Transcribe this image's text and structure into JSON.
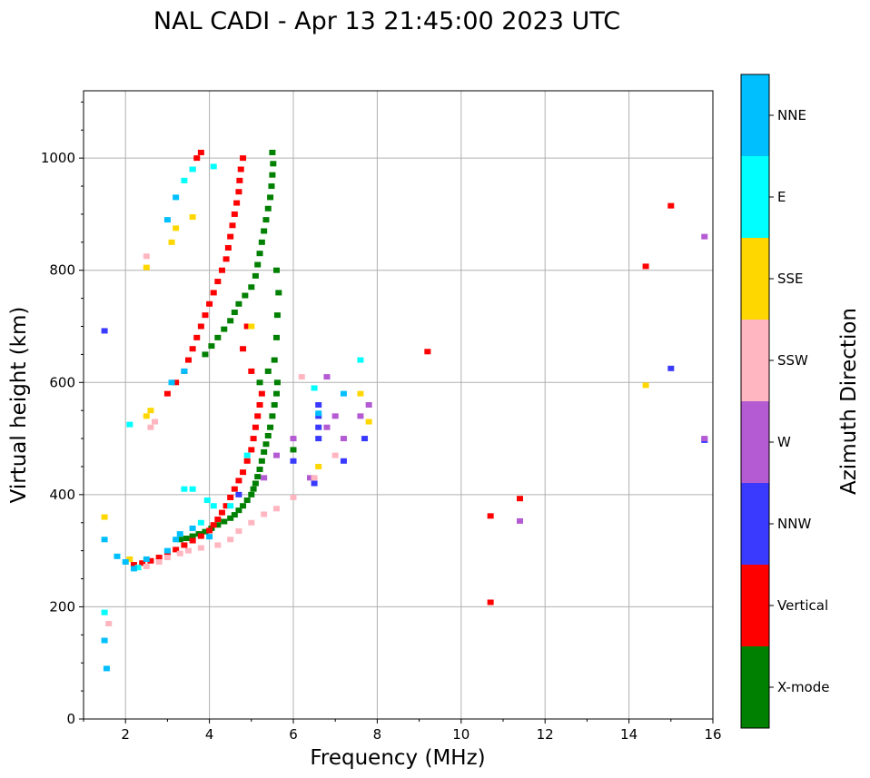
{
  "chart_data": {
    "type": "scatter",
    "title": "NAL CADI - Apr 13 21:45:00 2023 UTC",
    "xlabel": "Frequency (MHz)",
    "ylabel": "Virtual height (km)",
    "xlim": [
      1,
      16
    ],
    "ylim": [
      0,
      1120
    ],
    "xticks": [
      "2",
      "4",
      "6",
      "8",
      "10",
      "12",
      "14",
      "16"
    ],
    "yticks": [
      "0",
      "200",
      "400",
      "600",
      "800",
      "1000"
    ],
    "grid": true,
    "colorbar": {
      "label": "Azimuth Direction",
      "categories": [
        {
          "name": "X-mode",
          "color": "#008000"
        },
        {
          "name": "Vertical",
          "color": "#ff0000"
        },
        {
          "name": "NNW",
          "color": "#3a3aff"
        },
        {
          "name": "W",
          "color": "#b45ad2"
        },
        {
          "name": "SSW",
          "color": "#ffb6c1"
        },
        {
          "name": "SSE",
          "color": "#ffd700"
        },
        {
          "name": "E",
          "color": "#00ffff"
        },
        {
          "name": "NNE",
          "color": "#00bfff"
        }
      ]
    },
    "series": [
      {
        "name": "X-mode",
        "points": [
          [
            3.3,
            320
          ],
          [
            3.45,
            322
          ],
          [
            3.6,
            326
          ],
          [
            3.75,
            330
          ],
          [
            3.9,
            334
          ],
          [
            4.05,
            340
          ],
          [
            4.2,
            346
          ],
          [
            4.35,
            352
          ],
          [
            4.5,
            358
          ],
          [
            4.6,
            364
          ],
          [
            4.7,
            372
          ],
          [
            4.8,
            380
          ],
          [
            4.9,
            390
          ],
          [
            5.0,
            400
          ],
          [
            5.05,
            410
          ],
          [
            5.1,
            420
          ],
          [
            5.15,
            432
          ],
          [
            5.2,
            445
          ],
          [
            5.25,
            460
          ],
          [
            5.3,
            476
          ],
          [
            5.35,
            490
          ],
          [
            5.4,
            505
          ],
          [
            5.45,
            520
          ],
          [
            5.5,
            540
          ],
          [
            5.55,
            560
          ],
          [
            5.6,
            580
          ],
          [
            5.62,
            600
          ],
          [
            3.9,
            650
          ],
          [
            4.05,
            665
          ],
          [
            4.2,
            680
          ],
          [
            4.35,
            695
          ],
          [
            4.5,
            710
          ],
          [
            4.6,
            725
          ],
          [
            4.7,
            740
          ],
          [
            4.85,
            755
          ],
          [
            5.0,
            770
          ],
          [
            5.1,
            790
          ],
          [
            5.15,
            810
          ],
          [
            5.2,
            830
          ],
          [
            5.25,
            850
          ],
          [
            5.3,
            870
          ],
          [
            5.35,
            890
          ],
          [
            5.4,
            910
          ],
          [
            5.45,
            930
          ],
          [
            5.48,
            950
          ],
          [
            5.5,
            970
          ],
          [
            5.52,
            990
          ],
          [
            5.5,
            1010
          ],
          [
            5.55,
            640
          ],
          [
            5.6,
            680
          ],
          [
            5.62,
            720
          ],
          [
            5.65,
            760
          ],
          [
            5.6,
            800
          ],
          [
            5.2,
            600
          ],
          [
            5.4,
            620
          ],
          [
            6.0,
            480
          ]
        ]
      },
      {
        "name": "Vertical",
        "points": [
          [
            2.2,
            275
          ],
          [
            2.4,
            278
          ],
          [
            2.6,
            282
          ],
          [
            2.8,
            288
          ],
          [
            3.0,
            295
          ],
          [
            3.2,
            302
          ],
          [
            3.4,
            310
          ],
          [
            3.6,
            318
          ],
          [
            3.8,
            326
          ],
          [
            4.0,
            336
          ],
          [
            4.1,
            346
          ],
          [
            4.2,
            356
          ],
          [
            4.3,
            368
          ],
          [
            4.4,
            380
          ],
          [
            4.5,
            395
          ],
          [
            4.6,
            410
          ],
          [
            4.7,
            425
          ],
          [
            4.8,
            440
          ],
          [
            4.9,
            460
          ],
          [
            5.0,
            480
          ],
          [
            5.05,
            500
          ],
          [
            5.1,
            520
          ],
          [
            5.15,
            540
          ],
          [
            5.2,
            560
          ],
          [
            5.25,
            580
          ],
          [
            3.0,
            580
          ],
          [
            3.2,
            600
          ],
          [
            3.4,
            620
          ],
          [
            3.5,
            640
          ],
          [
            3.6,
            660
          ],
          [
            3.7,
            680
          ],
          [
            3.8,
            700
          ],
          [
            3.9,
            720
          ],
          [
            4.0,
            740
          ],
          [
            4.1,
            760
          ],
          [
            4.2,
            780
          ],
          [
            4.3,
            800
          ],
          [
            4.4,
            820
          ],
          [
            4.45,
            840
          ],
          [
            4.5,
            860
          ],
          [
            4.55,
            880
          ],
          [
            4.6,
            900
          ],
          [
            4.65,
            920
          ],
          [
            4.7,
            940
          ],
          [
            4.72,
            960
          ],
          [
            4.75,
            980
          ],
          [
            4.8,
            1000
          ],
          [
            3.6,
            980
          ],
          [
            3.7,
            1000
          ],
          [
            3.8,
            1010
          ],
          [
            4.8,
            660
          ],
          [
            4.9,
            700
          ],
          [
            5.0,
            620
          ],
          [
            10.7,
            362
          ],
          [
            10.7,
            208
          ],
          [
            14.4,
            807
          ],
          [
            15.0,
            915
          ],
          [
            9.2,
            655
          ],
          [
            11.4,
            393
          ]
        ]
      },
      {
        "name": "NNW",
        "points": [
          [
            6.6,
            500
          ],
          [
            6.6,
            520
          ],
          [
            6.6,
            540
          ],
          [
            6.6,
            560
          ],
          [
            7.2,
            460
          ],
          [
            7.7,
            500
          ],
          [
            6.0,
            460
          ],
          [
            4.7,
            400
          ],
          [
            15.0,
            625
          ],
          [
            15.8,
            497
          ],
          [
            1.5,
            692
          ],
          [
            6.5,
            420
          ]
        ]
      },
      {
        "name": "W",
        "points": [
          [
            5.3,
            430
          ],
          [
            5.6,
            470
          ],
          [
            6.0,
            500
          ],
          [
            6.4,
            430
          ],
          [
            6.8,
            520
          ],
          [
            7.0,
            540
          ],
          [
            7.2,
            500
          ],
          [
            7.6,
            540
          ],
          [
            7.8,
            560
          ],
          [
            15.8,
            860
          ],
          [
            15.8,
            500
          ],
          [
            11.4,
            353
          ],
          [
            6.8,
            610
          ]
        ]
      },
      {
        "name": "SSW",
        "points": [
          [
            2.5,
            272
          ],
          [
            2.8,
            280
          ],
          [
            3.0,
            288
          ],
          [
            3.3,
            295
          ],
          [
            3.5,
            300
          ],
          [
            3.8,
            305
          ],
          [
            4.2,
            310
          ],
          [
            4.5,
            320
          ],
          [
            4.7,
            335
          ],
          [
            5.0,
            350
          ],
          [
            5.3,
            365
          ],
          [
            5.6,
            375
          ],
          [
            6.0,
            395
          ],
          [
            6.5,
            430
          ],
          [
            7.0,
            470
          ],
          [
            2.6,
            520
          ],
          [
            2.7,
            530
          ],
          [
            2.5,
            825
          ],
          [
            1.6,
            170
          ],
          [
            6.2,
            610
          ]
        ]
      },
      {
        "name": "SSE",
        "points": [
          [
            1.5,
            360
          ],
          [
            2.1,
            285
          ],
          [
            2.5,
            540
          ],
          [
            2.6,
            550
          ],
          [
            2.5,
            805
          ],
          [
            3.1,
            850
          ],
          [
            3.2,
            875
          ],
          [
            3.6,
            895
          ],
          [
            6.6,
            450
          ],
          [
            7.6,
            580
          ],
          [
            7.8,
            530
          ],
          [
            14.4,
            595
          ],
          [
            5.0,
            700
          ]
        ]
      },
      {
        "name": "E",
        "points": [
          [
            1.5,
            190
          ],
          [
            2.1,
            525
          ],
          [
            2.3,
            270
          ],
          [
            3.4,
            410
          ],
          [
            3.6,
            410
          ],
          [
            3.8,
            350
          ],
          [
            3.95,
            390
          ],
          [
            4.1,
            380
          ],
          [
            4.5,
            380
          ],
          [
            4.1,
            985
          ],
          [
            3.4,
            960
          ],
          [
            3.6,
            980
          ],
          [
            4.9,
            470
          ],
          [
            6.5,
            590
          ],
          [
            7.6,
            640
          ]
        ]
      },
      {
        "name": "NNE",
        "points": [
          [
            1.5,
            320
          ],
          [
            1.5,
            140
          ],
          [
            1.55,
            90
          ],
          [
            1.8,
            290
          ],
          [
            2.0,
            280
          ],
          [
            2.2,
            268
          ],
          [
            2.5,
            285
          ],
          [
            3.0,
            300
          ],
          [
            3.2,
            320
          ],
          [
            3.3,
            330
          ],
          [
            3.6,
            340
          ],
          [
            4.0,
            325
          ],
          [
            3.2,
            930
          ],
          [
            3.0,
            890
          ],
          [
            3.4,
            620
          ],
          [
            3.1,
            600
          ],
          [
            6.6,
            545
          ],
          [
            7.2,
            580
          ]
        ]
      }
    ]
  }
}
